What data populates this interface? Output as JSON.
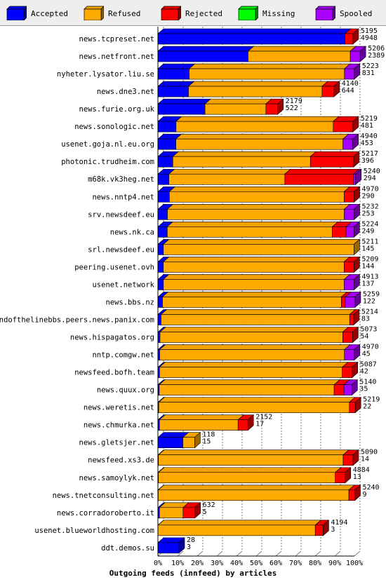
{
  "chart_data": {
    "type": "bar",
    "orientation": "horizontal",
    "stacked": true,
    "title": "Outgoing feeds (innfeed) by articles",
    "xlim": [
      0,
      100
    ],
    "x_ticks": [
      "0%",
      "10%",
      "20%",
      "30%",
      "40%",
      "50%",
      "60%",
      "70%",
      "80%",
      "90%",
      "100%"
    ],
    "grid": true,
    "legend_position": "top",
    "legend": [
      {
        "name": "Accepted",
        "color": "#0000ff"
      },
      {
        "name": "Refused",
        "color": "#ffaa00"
      },
      {
        "name": "Rejected",
        "color": "#ff0000"
      },
      {
        "name": "Missing",
        "color": "#00ff00"
      },
      {
        "name": "Spooled",
        "color": "#aa00ff"
      }
    ],
    "rows": [
      {
        "label": "news.tcpreset.net",
        "total": "5195",
        "accepted": "4948",
        "refused_pct": 0,
        "rejected_pct": 4,
        "spooled_pct": 0
      },
      {
        "label": "news.netfront.net",
        "total": "5206",
        "accepted": "2389",
        "refused_pct": 52,
        "rejected_pct": 0,
        "spooled_pct": 5
      },
      {
        "label": "nyheter.lysator.liu.se",
        "total": "5223",
        "accepted": "831",
        "refused_pct": 79,
        "rejected_pct": 0,
        "spooled_pct": 5
      },
      {
        "label": "news.dne3.net",
        "total": "4140",
        "accepted": "644",
        "refused_pct": 68,
        "rejected_pct": 6,
        "spooled_pct": 0
      },
      {
        "label": "news.furie.org.uk",
        "total": "2179",
        "accepted": "522",
        "refused_pct": 31,
        "rejected_pct": 6,
        "spooled_pct": 0
      },
      {
        "label": "news.sonologic.net",
        "total": "5219",
        "accepted": "481",
        "refused_pct": 80,
        "rejected_pct": 10,
        "spooled_pct": 0
      },
      {
        "label": "usenet.goja.nl.eu.org",
        "total": "4940",
        "accepted": "453",
        "refused_pct": 85,
        "rejected_pct": 0,
        "spooled_pct": 5
      },
      {
        "label": "photonic.trudheim.com",
        "total": "5217",
        "accepted": "396",
        "refused_pct": 70,
        "rejected_pct": 22,
        "spooled_pct": 0
      },
      {
        "label": "m68k.vk3heg.net",
        "total": "5240",
        "accepted": "294",
        "refused_pct": 59,
        "rejected_pct": 35,
        "spooled_pct": 1
      },
      {
        "label": "news.nntp4.net",
        "total": "4970",
        "accepted": "290",
        "refused_pct": 89,
        "rejected_pct": 5,
        "spooled_pct": 0
      },
      {
        "label": "srv.newsdeef.eu",
        "total": "5232",
        "accepted": "253",
        "refused_pct": 90,
        "rejected_pct": 0,
        "spooled_pct": 5
      },
      {
        "label": "news.nk.ca",
        "total": "5224",
        "accepted": "249",
        "refused_pct": 84,
        "rejected_pct": 7,
        "spooled_pct": 4
      },
      {
        "label": "srl.newsdeef.eu",
        "total": "5211",
        "accepted": "145",
        "refused_pct": 97,
        "rejected_pct": 0,
        "spooled_pct": 0
      },
      {
        "label": "peering.usenet.ovh",
        "total": "5209",
        "accepted": "144",
        "refused_pct": 92,
        "rejected_pct": 5,
        "spooled_pct": 0
      },
      {
        "label": "usenet.network",
        "total": "4913",
        "accepted": "137",
        "refused_pct": 92,
        "rejected_pct": 0,
        "spooled_pct": 5
      },
      {
        "label": "news.bbs.nz",
        "total": "5259",
        "accepted": "122",
        "refused_pct": 91,
        "rejected_pct": 2,
        "spooled_pct": 5
      },
      {
        "label": "endofthelinebbs.peers.news.panix.com",
        "total": "5214",
        "accepted": "83",
        "refused_pct": 96,
        "rejected_pct": 2,
        "spooled_pct": 0
      },
      {
        "label": "news.hispagatos.org",
        "total": "5073",
        "accepted": "54",
        "refused_pct": 93,
        "rejected_pct": 5,
        "spooled_pct": 0
      },
      {
        "label": "nntp.comgw.net",
        "total": "4970",
        "accepted": "45",
        "refused_pct": 94,
        "rejected_pct": 0,
        "spooled_pct": 5
      },
      {
        "label": "newsfeed.bofh.team",
        "total": "5087",
        "accepted": "42",
        "refused_pct": 93,
        "rejected_pct": 5,
        "spooled_pct": 0
      },
      {
        "label": "news.quux.org",
        "total": "5140",
        "accepted": "35",
        "refused_pct": 89,
        "rejected_pct": 5,
        "spooled_pct": 4
      },
      {
        "label": "news.weretis.net",
        "total": "5219",
        "accepted": "22",
        "refused_pct": 97,
        "rejected_pct": 3,
        "spooled_pct": 0
      },
      {
        "label": "news.chmurka.net",
        "total": "2152",
        "accepted": "17",
        "refused_pct": 40,
        "rejected_pct": 5,
        "spooled_pct": 0
      },
      {
        "label": "news.gletsjer.net",
        "total": "118",
        "accepted": "15",
        "refused_pct": 6,
        "rejected_pct": 0,
        "spooled_pct": 0
      },
      {
        "label": "newsfeed.xs3.de",
        "total": "5090",
        "accepted": "14",
        "refused_pct": 94,
        "rejected_pct": 5,
        "spooled_pct": 0
      },
      {
        "label": "news.samoylyk.net",
        "total": "4884",
        "accepted": "13",
        "refused_pct": 90,
        "rejected_pct": 5,
        "spooled_pct": 0
      },
      {
        "label": "news.tnetconsulting.net",
        "total": "5240",
        "accepted": "9",
        "refused_pct": 97,
        "rejected_pct": 3,
        "spooled_pct": 0
      },
      {
        "label": "news.corradoroberto.it",
        "total": "632",
        "accepted": "5",
        "refused_pct": 12,
        "rejected_pct": 6,
        "spooled_pct": 0
      },
      {
        "label": "usenet.blueworldhosting.com",
        "total": "4194",
        "accepted": "3",
        "refused_pct": 80,
        "rejected_pct": 4,
        "spooled_pct": 0
      },
      {
        "label": "ddt.demos.su",
        "total": "28",
        "accepted": "3",
        "refused_pct": 0,
        "rejected_pct": 0,
        "spooled_pct": 0
      }
    ]
  }
}
